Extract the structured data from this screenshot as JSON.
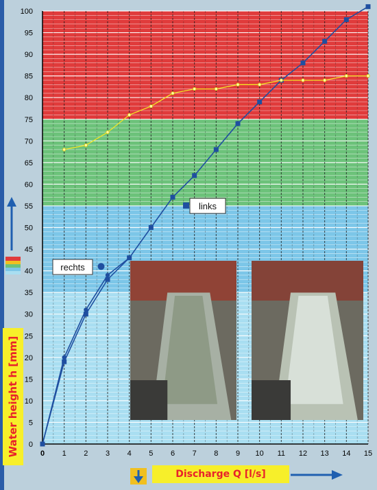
{
  "chart_data": {
    "type": "line",
    "xlabel": "Discharge Q [l/s]",
    "ylabel": "Water height h  [mm]",
    "xlim": [
      0,
      15
    ],
    "ylim": [
      0,
      100
    ],
    "x_ticks": [
      "0",
      "1",
      "2",
      "3",
      "4",
      "5",
      "6",
      "7",
      "8",
      "9",
      "10",
      "11",
      "12",
      "13",
      "14",
      "15"
    ],
    "y_ticks": [
      "0",
      "5",
      "10",
      "15",
      "20",
      "25",
      "30",
      "35",
      "40",
      "45",
      "50",
      "55",
      "60",
      "65",
      "70",
      "75",
      "80",
      "85",
      "90",
      "95",
      "100"
    ],
    "bands": [
      {
        "from": 0,
        "to": 35,
        "color": "#a9def1"
      },
      {
        "from": 35,
        "to": 55,
        "color": "#7cc6e8"
      },
      {
        "from": 55,
        "to": 75,
        "color": "#6cc27a"
      },
      {
        "from": 75,
        "to": 100,
        "color": "#e03b3b"
      }
    ],
    "series": [
      {
        "name": "links",
        "color": "#1f4fa0",
        "marker": "square",
        "points": [
          [
            0,
            0
          ],
          [
            1,
            19
          ],
          [
            2,
            30
          ],
          [
            3,
            38
          ],
          [
            4,
            43
          ],
          [
            5,
            50
          ],
          [
            6,
            57
          ],
          [
            7,
            62
          ],
          [
            8,
            68
          ],
          [
            9,
            74
          ],
          [
            10,
            79
          ],
          [
            11,
            84
          ],
          [
            12,
            88
          ],
          [
            13,
            93
          ],
          [
            14,
            98
          ],
          [
            15,
            101
          ]
        ]
      },
      {
        "name": "rechts",
        "color": "#1f4fa0",
        "marker": "circle",
        "points": [
          [
            0,
            0
          ],
          [
            1,
            20
          ],
          [
            2,
            31
          ],
          [
            3,
            39
          ],
          [
            4,
            43
          ]
        ]
      },
      {
        "name": "",
        "color": "#f2e626",
        "marker": "circle",
        "points": [
          [
            1,
            68
          ],
          [
            2,
            69
          ],
          [
            3,
            72
          ],
          [
            4,
            76
          ],
          [
            5,
            78
          ],
          [
            6,
            81
          ],
          [
            7,
            82
          ],
          [
            8,
            82
          ],
          [
            9,
            83
          ],
          [
            10,
            83
          ],
          [
            11,
            84
          ],
          [
            12,
            84
          ],
          [
            13,
            84
          ],
          [
            14,
            85
          ],
          [
            15,
            85
          ]
        ]
      }
    ],
    "annotations": [
      {
        "text": "links",
        "marker_at": [
          6.6,
          55
        ]
      },
      {
        "text": "rechts",
        "marker_at": [
          2.7,
          41
        ]
      }
    ],
    "grid": true
  }
}
